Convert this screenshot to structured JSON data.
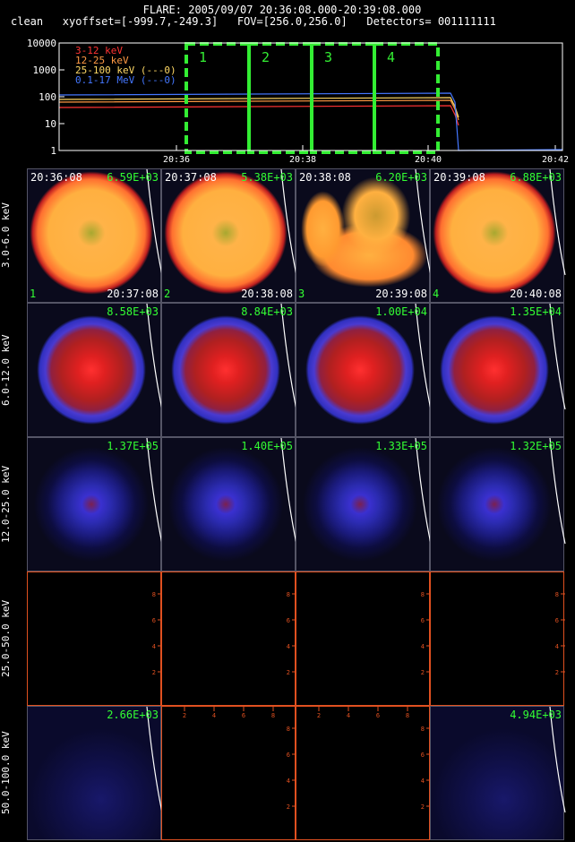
{
  "header": {
    "line1": "FLARE: 2005/09/07 20:36:08.000-20:39:08.000",
    "line2": "clean   xyoffset=[-999.7,-249.3]   FOV=[256.0,256.0]   Detectors= 001111111"
  },
  "lightcurve": {
    "y_ticks": [
      "10000",
      "1000",
      "100",
      "10",
      "1"
    ],
    "x_ticks": [
      "20:36",
      "20:38",
      "20:40",
      "20:42"
    ],
    "legend": [
      {
        "text": "3-12 keV",
        "color": "#ff3333"
      },
      {
        "text": "12-25 keV",
        "color": "#ff9944"
      },
      {
        "text": "25-100 keV (---0)",
        "color": "#ffd966"
      },
      {
        "text": "0.1-17 MeV (---0)",
        "color": "#4477ff"
      }
    ],
    "intervals": [
      "1",
      "2",
      "3",
      "4"
    ],
    "interval_color": "#33ee33"
  },
  "rows": [
    {
      "label": "3.0-6.0 keV",
      "style": "orange",
      "panels": [
        {
          "time_start": "20:36:08",
          "value": "6.59E+03",
          "time_end": "20:37:08",
          "index": "1"
        },
        {
          "time_start": "20:37:08",
          "value": "5.38E+03",
          "time_end": "20:38:08",
          "index": "2"
        },
        {
          "time_start": "20:38:08",
          "value": "6.20E+03",
          "time_end": "20:39:08",
          "index": "3"
        },
        {
          "time_start": "20:39:08",
          "value": "6.88E+03",
          "time_end": "20:40:08",
          "index": "4"
        }
      ]
    },
    {
      "label": "6.0-12.0 keV",
      "style": "red",
      "panels": [
        {
          "value": "8.58E+03"
        },
        {
          "value": "8.84E+03"
        },
        {
          "value": "1.00E+04"
        },
        {
          "value": "1.35E+04"
        }
      ]
    },
    {
      "label": "12.0-25.0 keV",
      "style": "blue",
      "panels": [
        {
          "value": "1.37E+05"
        },
        {
          "value": "1.40E+05"
        },
        {
          "value": "1.33E+05"
        },
        {
          "value": "1.32E+05"
        }
      ]
    },
    {
      "label": "25.0-50.0 keV",
      "style": "empty",
      "panels": [
        {},
        {},
        {},
        {}
      ]
    },
    {
      "label": "50.0-100.0 keV",
      "style": "faint",
      "panels": [
        {
          "value": "2.66E+03"
        },
        {},
        {},
        {
          "value": "4.94E+03"
        }
      ]
    }
  ],
  "axis_ticks": [
    "2",
    "4",
    "6",
    "8"
  ]
}
